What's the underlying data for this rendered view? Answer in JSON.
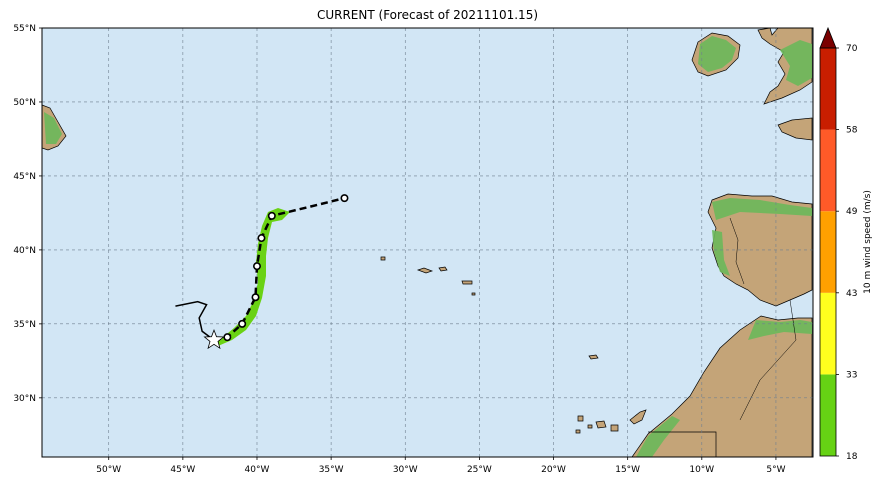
{
  "title": "CURRENT (Forecast of 20211101.15)",
  "map": {
    "lon_range": [
      -54.5,
      -2.5
    ],
    "lat_range": [
      26.0,
      55.0
    ],
    "lon_ticks": [
      {
        "value": -50,
        "label": "50°W"
      },
      {
        "value": -45,
        "label": "45°W"
      },
      {
        "value": -40,
        "label": "40°W"
      },
      {
        "value": -35,
        "label": "35°W"
      },
      {
        "value": -30,
        "label": "30°W"
      },
      {
        "value": -25,
        "label": "25°W"
      },
      {
        "value": -20,
        "label": "20°W"
      },
      {
        "value": -15,
        "label": "15°W"
      },
      {
        "value": -10,
        "label": "10°W"
      },
      {
        "value": -5,
        "label": "5°W"
      }
    ],
    "lat_ticks": [
      {
        "value": 55,
        "label": "55°N"
      },
      {
        "value": 50,
        "label": "50°N"
      },
      {
        "value": 45,
        "label": "45°N"
      },
      {
        "value": 40,
        "label": "40°N"
      },
      {
        "value": 35,
        "label": "35°N"
      },
      {
        "value": 30,
        "label": "30°N"
      }
    ],
    "colors": {
      "ocean": "#d2e6f5",
      "land": "#c4a478",
      "land_green": "#6cb85a",
      "swath": "#6ad214",
      "grid": "#6f7f8f"
    }
  },
  "storm": {
    "current_position": {
      "lon": -42.9,
      "lat": 33.9
    },
    "past_track": [
      {
        "lon": -45.5,
        "lat": 36.2
      },
      {
        "lon": -44.0,
        "lat": 36.5
      },
      {
        "lon": -43.4,
        "lat": 36.3
      },
      {
        "lon": -43.9,
        "lat": 35.4
      },
      {
        "lon": -43.7,
        "lat": 34.5
      },
      {
        "lon": -42.9,
        "lat": 33.9
      }
    ],
    "forecast_track": [
      {
        "lon": -42.9,
        "lat": 33.9
      },
      {
        "lon": -42.0,
        "lat": 34.1
      },
      {
        "lon": -41.0,
        "lat": 35.0
      },
      {
        "lon": -40.1,
        "lat": 36.8
      },
      {
        "lon": -40.0,
        "lat": 38.9
      },
      {
        "lon": -39.7,
        "lat": 40.8
      },
      {
        "lon": -39.0,
        "lat": 42.3
      },
      {
        "lon": -36.5,
        "lat": 42.9
      },
      {
        "lon": -34.1,
        "lat": 43.5
      }
    ],
    "forecast_points": [
      {
        "lon": -42.0,
        "lat": 34.1
      },
      {
        "lon": -41.0,
        "lat": 35.0
      },
      {
        "lon": -40.1,
        "lat": 36.8
      },
      {
        "lon": -40.0,
        "lat": 38.9
      },
      {
        "lon": -39.7,
        "lat": 40.8
      },
      {
        "lon": -39.0,
        "lat": 42.3
      },
      {
        "lon": -34.1,
        "lat": 43.5
      }
    ]
  },
  "colorbar": {
    "label": "10 m wind speed (m/s)",
    "ticks": [
      "18",
      "33",
      "43",
      "49",
      "58",
      "70"
    ],
    "colors": [
      "#66d214",
      "#ffff1e",
      "#ffa000",
      "#ff5a28",
      "#c81e00"
    ],
    "extend_color": "#7a0000"
  }
}
